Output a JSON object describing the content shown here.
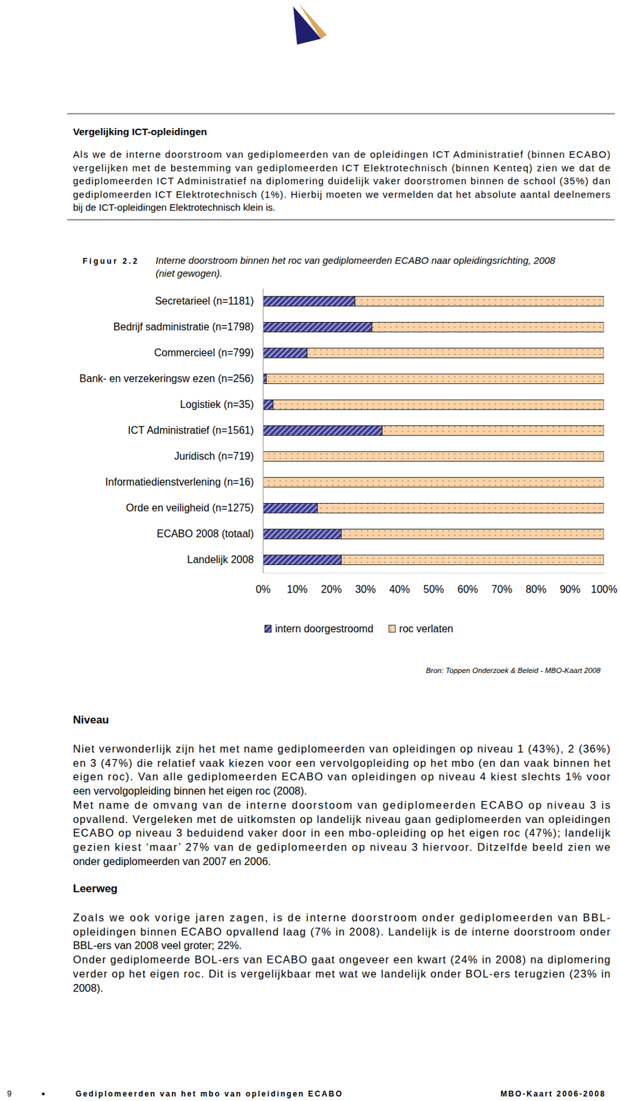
{
  "intro": {
    "title": "Vergelijking ICT-opleidingen",
    "paragraphs": [
      [
        "Als we de interne doorstroom van gediplomeerden van de opleidingen ICT Administratief (binnen ECABO)",
        "vergelijken met de bestemming van gediplomeerden ICT Elektrotechnisch (binnen Kenteq) zien we dat de",
        "gediplomeerden ICT Administratief na diplomering duidelijk vaker doorstromen binnen de school (35%) dan",
        "gediplomeerden ICT Elektrotechnisch (1%). Hierbij moeten we vermelden dat het absolute aantal deelnemers",
        "bij de ICT-opleidingen Elektrotechnisch klein is."
      ]
    ]
  },
  "figure": {
    "label": "Figuur 2.2",
    "caption": [
      "Interne doorstroom binnen het roc van gediplomeerden ECABO naar opleidingsrichting, 2008",
      "(niet gewogen)."
    ],
    "source": "Bron: Toppen Onderzoek & Beleid - MBO-Kaart 2008"
  },
  "chart_data": {
    "type": "bar",
    "orientation": "horizontal",
    "stacked": true,
    "grid": false,
    "legend": "bottom",
    "categories": [
      "Secretarieel (n=1181)",
      "Bedrijf sadministratie (n=1798)",
      "Commercieel (n=799)",
      "Bank- en verzekeringsw ezen (n=256)",
      "Logistiek (n=35)",
      "ICT Administratief (n=1561)",
      "Juridisch (n=719)",
      "Informatiedienstverlening (n=16)",
      "Orde en veiligheid (n=1275)",
      "ECABO 2008 (totaal)",
      "Landelijk 2008"
    ],
    "series": [
      {
        "name": "intern doorgestroomd",
        "color": "#3d3d8f",
        "values": [
          27,
          32,
          13,
          1,
          3,
          35,
          0,
          0,
          16,
          23,
          23
        ]
      },
      {
        "name": "roc verlaten",
        "color": "#fad3a8",
        "values": [
          73,
          68,
          87,
          99,
          97,
          65,
          100,
          100,
          84,
          77,
          77
        ]
      }
    ],
    "xlim": [
      0,
      100
    ],
    "xticks": [
      {
        "value": 0,
        "label": "0%"
      },
      {
        "value": 10,
        "label": "10%"
      },
      {
        "value": 20,
        "label": "20%"
      },
      {
        "value": 30,
        "label": "30%"
      },
      {
        "value": 40,
        "label": "40%"
      },
      {
        "value": 50,
        "label": "50%"
      },
      {
        "value": 60,
        "label": "60%"
      },
      {
        "value": 70,
        "label": "70%"
      },
      {
        "value": 80,
        "label": "80%"
      },
      {
        "value": 90,
        "label": "90%"
      },
      {
        "value": 100,
        "label": "100%"
      }
    ]
  },
  "sections": [
    {
      "title": "Niveau",
      "paragraphs": [
        [
          "Niet verwonderlijk zijn het met name gediplomeerden van opleidingen op niveau 1 (43%), 2 (36%)",
          "en 3 (47%) die relatief vaak kiezen voor een vervolgopleiding op het mbo (en dan vaak binnen het",
          "eigen roc). Van alle gediplomeerden ECABO van opleidingen op niveau 4 kiest slechts 1% voor",
          "een vervolgopleiding binnen het eigen roc (2008)."
        ],
        [
          "Met name de omvang van de interne doorstoom van gediplomeerden ECABO op niveau 3 is",
          "opvallend. Vergeleken met de uitkomsten op landelijk niveau gaan gediplomeerden van opleidingen",
          "ECABO op niveau 3 beduidend vaker door in een mbo-opleiding op het eigen roc (47%); landelijk",
          "gezien kiest ‘maar’ 27% van de gediplomeerden op niveau 3 hiervoor. Ditzelfde beeld zien we",
          "onder gediplomeerden van 2007 en 2006."
        ]
      ]
    },
    {
      "title": "Leerweg",
      "paragraphs": [
        [
          "Zoals we ook vorige jaren zagen, is de interne doorstroom onder gediplomeerden van BBL-",
          "opleidingen binnen ECABO opvallend laag (7% in 2008). Landelijk is de interne doorstroom onder",
          "BBL-ers van 2008 veel groter; 22%."
        ],
        [
          "Onder gediplomeerde BOL-ers van ECABO gaat ongeveer een kwart (24% in 2008) na diplomering",
          "verder op het eigen roc. Dit is vergelijkbaar met wat we landelijk onder BOL-ers terugzien (23% in",
          "2008)."
        ]
      ]
    }
  ],
  "footer": {
    "page": "9",
    "title": "Gediplomeerden van het mbo van opleidingen ECABO",
    "right": "MBO-Kaart 2006-2008"
  }
}
